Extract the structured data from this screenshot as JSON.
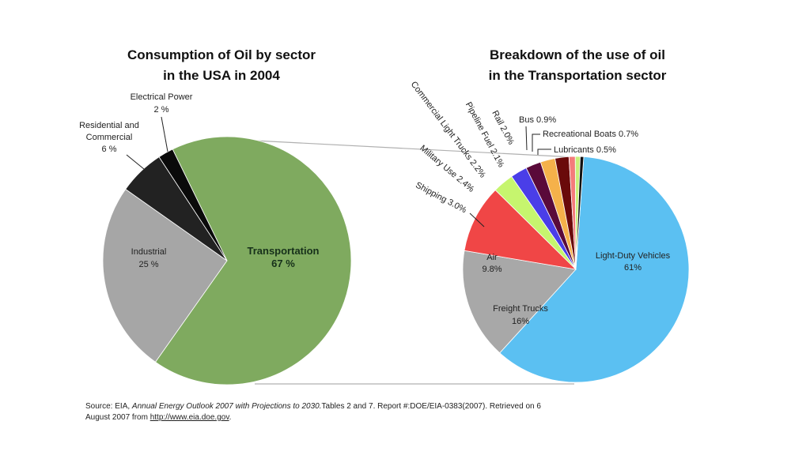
{
  "chart_data": [
    {
      "type": "pie",
      "title": [
        "Consumption of Oil by sector",
        "in the USA in 2004"
      ],
      "slices": [
        {
          "label": "Transportation",
          "value": 67,
          "display": "67 %",
          "color": "#7faa5f"
        },
        {
          "label": "Industrial",
          "value": 25,
          "display": "25 %",
          "color": "#a6a6a6"
        },
        {
          "label": [
            "Residential and",
            "Commercial"
          ],
          "value": 6,
          "display": "6 %",
          "color": "#222222"
        },
        {
          "label": "Electrical Power",
          "value": 2,
          "display": "2 %",
          "color": "#0a0a0a"
        }
      ]
    },
    {
      "type": "pie",
      "title": [
        "Breakdown of the use of oil",
        "in the Transportation sector"
      ],
      "slices": [
        {
          "label": "Light-Duty Vehicles",
          "value": 61,
          "display": "61%",
          "color": "#5bc0f2"
        },
        {
          "label": "Freight Trucks",
          "value": 16,
          "display": "16%",
          "color": "#a8a8a8"
        },
        {
          "label": "Air",
          "value": 9.8,
          "display": "9.8%",
          "color": "#f04646"
        },
        {
          "label": "Shipping",
          "value": 3.0,
          "display": "3.0%",
          "color": "#c6f56e"
        },
        {
          "label": "Military Use",
          "value": 2.4,
          "display": "2.4%",
          "color": "#4a3ee8"
        },
        {
          "label": "Commercial Light Trucks",
          "value": 2.2,
          "display": "2.2%",
          "color": "#5a0a3a"
        },
        {
          "label": "Pipeline Fuel",
          "value": 2.1,
          "display": "2.1%",
          "color": "#f5b14a"
        },
        {
          "label": "Rail",
          "value": 2.0,
          "display": "2.0%",
          "color": "#6a0a0a"
        },
        {
          "label": "Bus",
          "value": 0.9,
          "display": "0.9%",
          "color": "#f47b7b"
        },
        {
          "label": "Recreational Boats",
          "value": 0.7,
          "display": "0.7%",
          "color": "#c8f07a"
        },
        {
          "label": "Lubricants",
          "value": 0.5,
          "display": "0.5%",
          "color": "#111111"
        }
      ]
    }
  ],
  "source": {
    "prefix": "Source: EIA,",
    "publication": "Annual Energy Outlook 2007 with Projections to 2030.",
    "details": "Tables 2 and 7. Report #:DOE/EIA-0383(2007). Retrieved on 6",
    "line2_prefix": "August 2007 from",
    "link": "http://www.eia.doe.gov",
    "line2_suffix": "."
  }
}
